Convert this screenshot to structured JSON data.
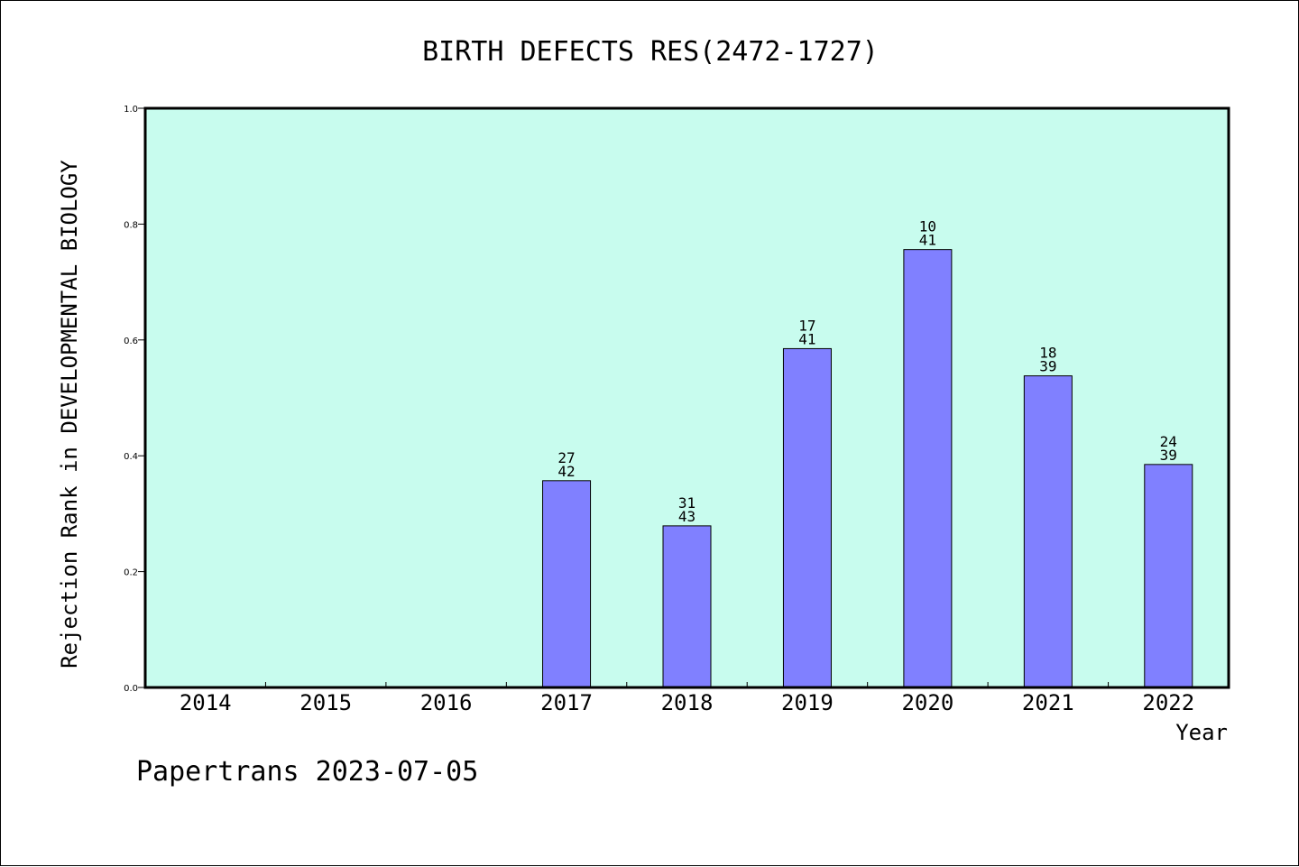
{
  "chart_data": {
    "type": "bar",
    "title": "BIRTH DEFECTS RES(2472-1727)",
    "xlabel": "Year",
    "ylabel": "Rejection Rank in DEVELOPMENTAL BIOLOGY",
    "ylim": [
      0,
      1.0
    ],
    "yticks": [
      "0.0",
      "0.2",
      "0.4",
      "0.6",
      "0.8",
      "1.0"
    ],
    "categories": [
      "2014",
      "2015",
      "2016",
      "2017",
      "2018",
      "2019",
      "2020",
      "2021",
      "2022"
    ],
    "values": [
      null,
      null,
      null,
      0.357,
      0.279,
      0.585,
      0.756,
      0.538,
      0.385
    ],
    "bar_labels": [
      null,
      null,
      null,
      [
        "27",
        "42"
      ],
      [
        "31",
        "43"
      ],
      [
        "17",
        "41"
      ],
      [
        "10",
        "41"
      ],
      [
        "18",
        "39"
      ],
      [
        "24",
        "39"
      ]
    ],
    "grid": false,
    "legend": "none",
    "colors": {
      "plot_background": "#c8fcee",
      "bar_fill": "#8080ff",
      "bar_stroke": "#000000"
    }
  },
  "footer": {
    "text": "Papertrans 2023-07-05"
  }
}
